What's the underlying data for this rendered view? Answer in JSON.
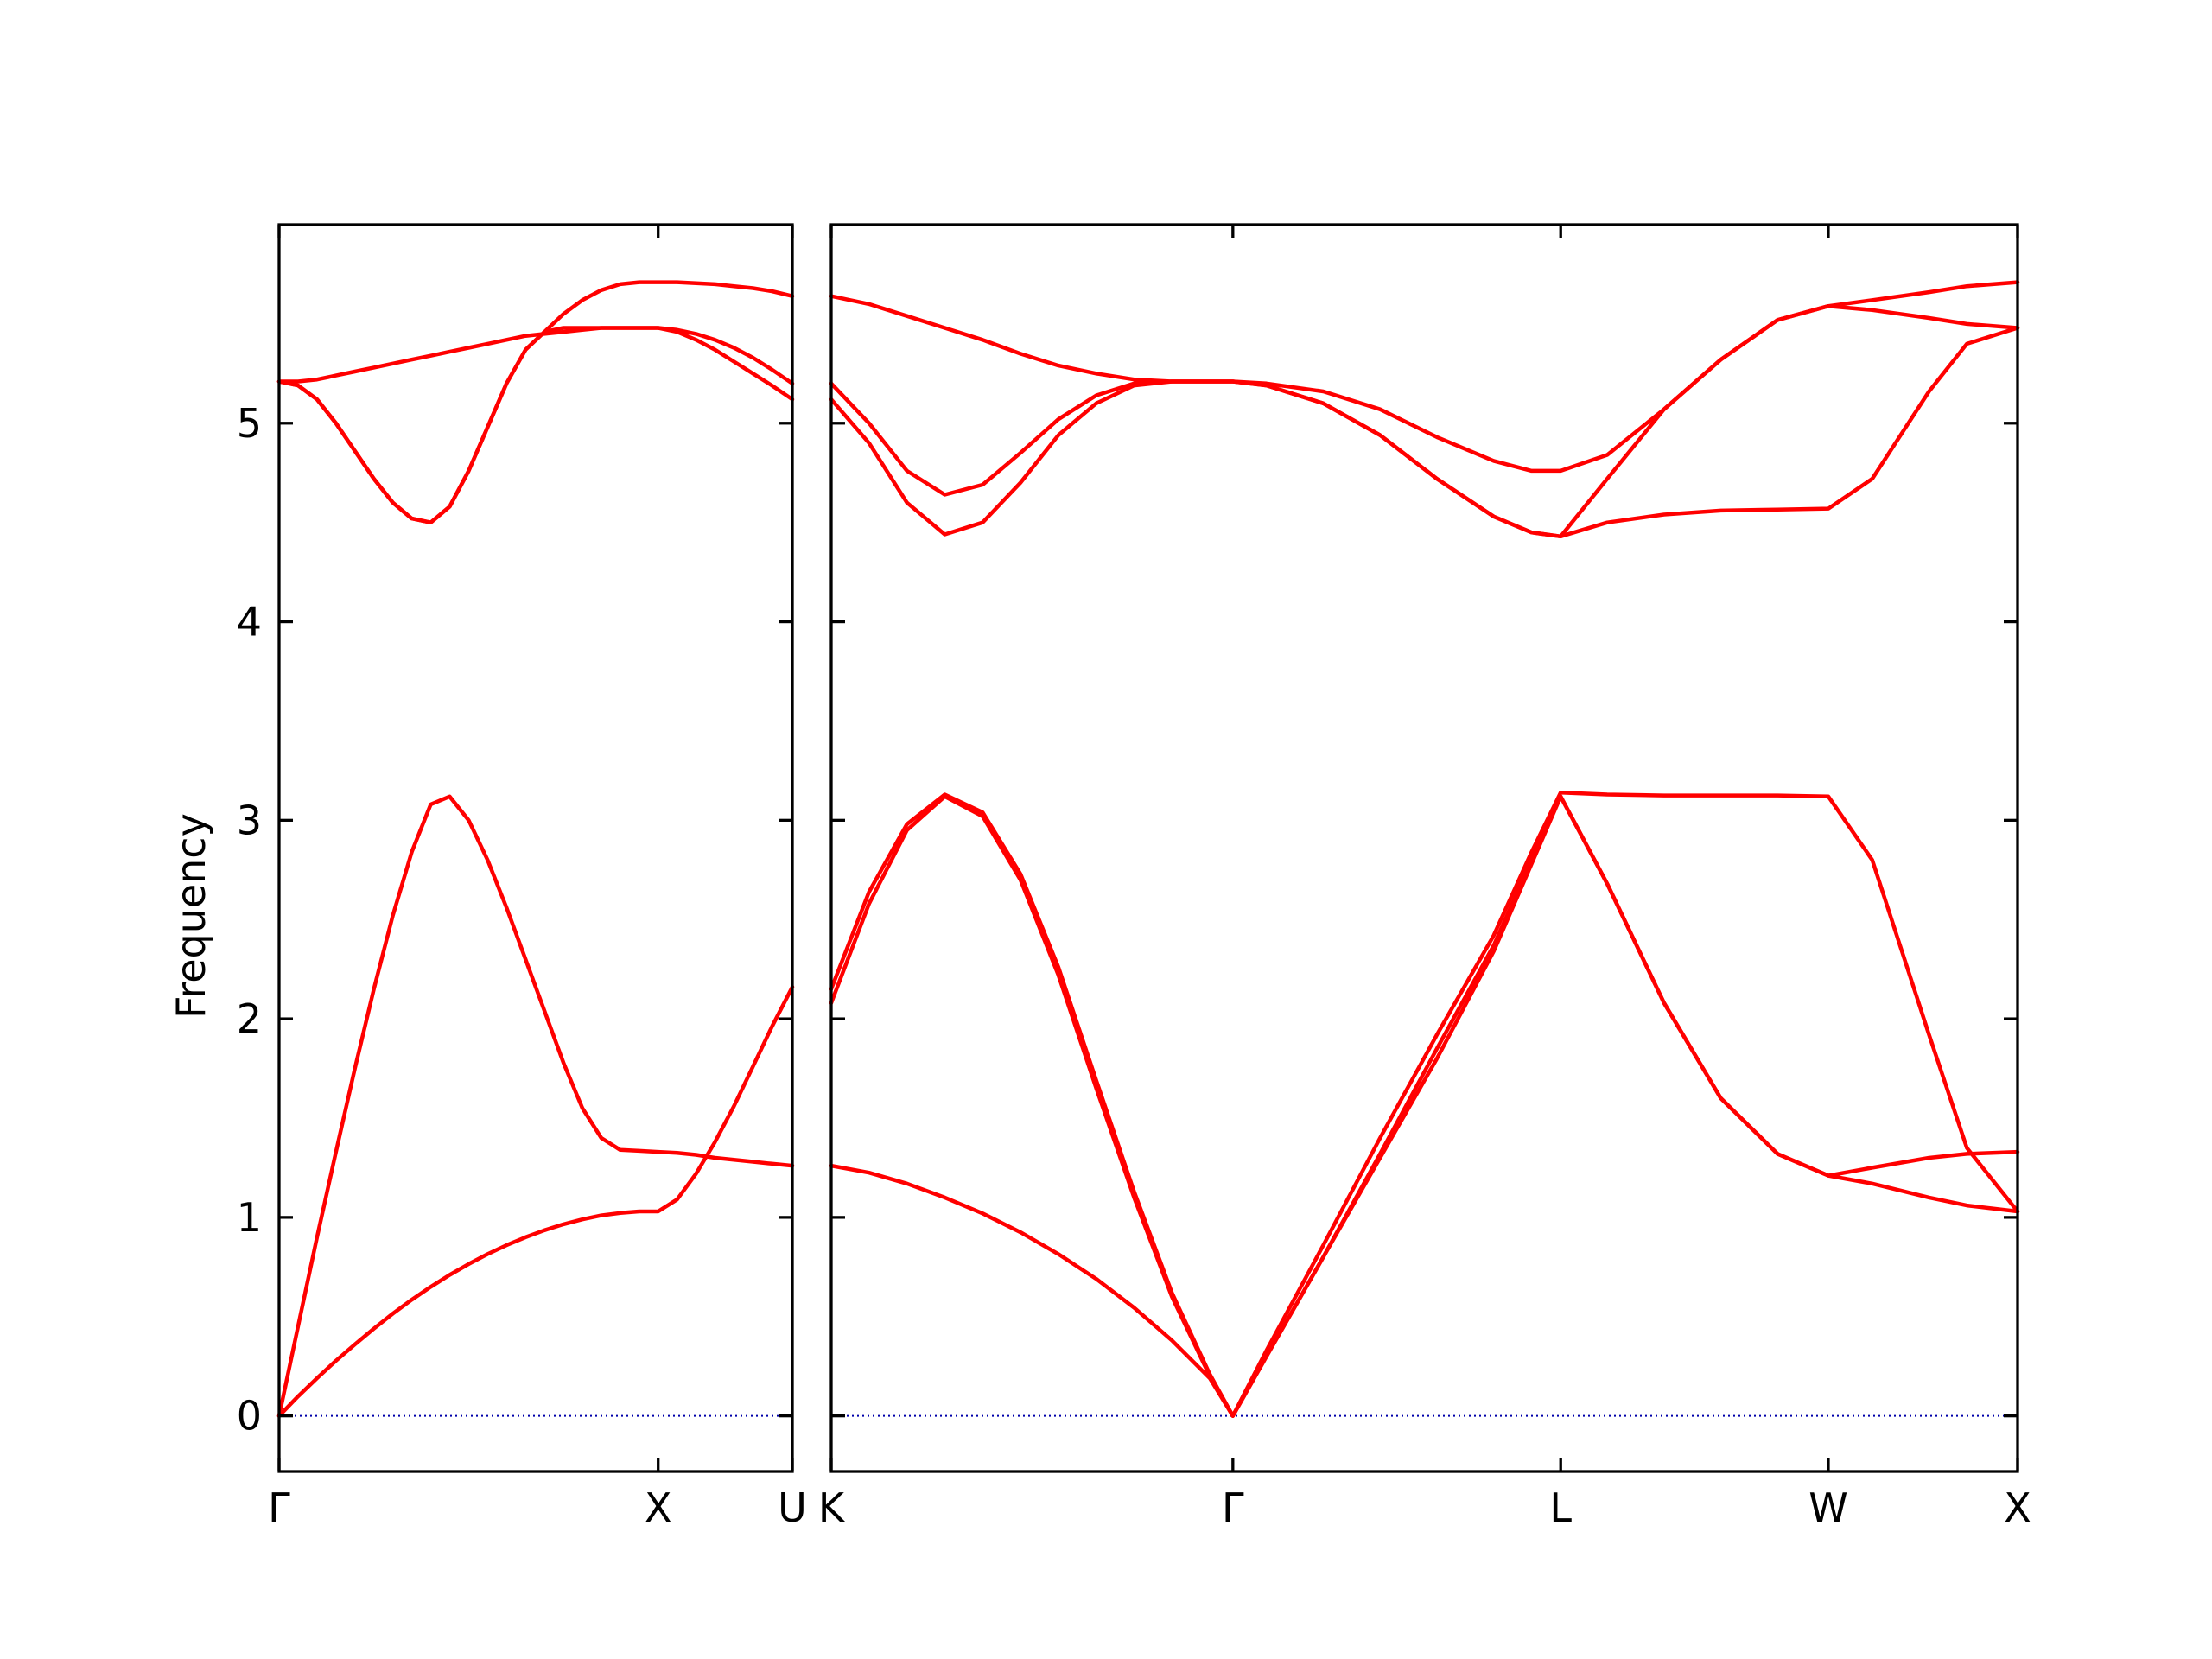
{
  "chart_data": {
    "type": "line",
    "ylabel": "Frequency",
    "ylim": [
      -0.28,
      6.0
    ],
    "yticks": [
      0,
      1,
      2,
      3,
      4,
      5
    ],
    "grid": false,
    "legend": "none",
    "colors": {
      "bands": "#ff0000",
      "zero_line": "#0000aa",
      "axes": "#000000"
    },
    "panels": [
      {
        "xlabels": [
          "Γ",
          "X",
          "U"
        ],
        "x": [
          0,
          1,
          1.354
        ],
        "series": [
          {
            "x": [
              0,
              0.05,
              0.1,
              0.15,
              0.2,
              0.25,
              0.3,
              0.35,
              0.4,
              0.45,
              0.5,
              0.55,
              0.6,
              0.65,
              0.7,
              0.75,
              0.8,
              0.85,
              0.9,
              0.95,
              1,
              1.05,
              1.1,
              1.15,
              1.2,
              1.25,
              1.3,
              1.354
            ],
            "y": [
              0,
              0.098,
              0.19,
              0.278,
              0.36,
              0.44,
              0.515,
              0.585,
              0.65,
              0.71,
              0.765,
              0.815,
              0.86,
              0.9,
              0.935,
              0.965,
              0.99,
              1.01,
              1.022,
              1.03,
              1.03,
              1.09,
              1.22,
              1.38,
              1.56,
              1.76,
              1.96,
              2.16
            ]
          },
          {
            "x": [
              0,
              0.05,
              0.1,
              0.15,
              0.2,
              0.25,
              0.3,
              0.35,
              0.4,
              0.45,
              0.5,
              0.55,
              0.6,
              0.65,
              0.7,
              0.75,
              0.8,
              0.85,
              0.9,
              0.95,
              1,
              1.05,
              1.1,
              1.15,
              1.2,
              1.25,
              1.3,
              1.354
            ],
            "y": [
              0,
              0.45,
              0.9,
              1.33,
              1.75,
              2.15,
              2.52,
              2.84,
              3.08,
              3.12,
              3.0,
              2.8,
              2.56,
              2.3,
              2.04,
              1.78,
              1.55,
              1.4,
              1.34,
              1.335,
              1.33,
              1.325,
              1.315,
              1.3,
              1.29,
              1.28,
              1.27,
              1.26
            ]
          },
          {
            "x": [
              0,
              0.05,
              0.1,
              0.15,
              0.2,
              0.25,
              0.3,
              0.35,
              0.4,
              0.45,
              0.5,
              0.55,
              0.6,
              0.65,
              0.7,
              0.75,
              0.8,
              0.85,
              0.9,
              0.95,
              1,
              1.05,
              1.1,
              1.15,
              1.2,
              1.25,
              1.3,
              1.354
            ],
            "y": [
              5.21,
              5.21,
              5.22,
              5.24,
              5.26,
              5.28,
              5.3,
              5.32,
              5.34,
              5.36,
              5.38,
              5.4,
              5.42,
              5.44,
              5.45,
              5.46,
              5.47,
              5.48,
              5.48,
              5.48,
              5.48,
              5.47,
              5.45,
              5.42,
              5.38,
              5.33,
              5.27,
              5.2
            ]
          },
          {
            "x": [
              0,
              0.05,
              0.1,
              0.15,
              0.2,
              0.25,
              0.3,
              0.35,
              0.4,
              0.45,
              0.5,
              0.55,
              0.6,
              0.65,
              0.7,
              0.75,
              0.8,
              0.85,
              0.9,
              0.95,
              1,
              1.05,
              1.1,
              1.15,
              1.2,
              1.25,
              1.3,
              1.354
            ],
            "y": [
              5.21,
              5.19,
              5.12,
              5.0,
              4.86,
              4.72,
              4.6,
              4.52,
              4.5,
              4.58,
              4.76,
              4.98,
              5.2,
              5.37,
              5.46,
              5.48,
              5.48,
              5.48,
              5.48,
              5.48,
              5.48,
              5.46,
              5.42,
              5.37,
              5.31,
              5.25,
              5.19,
              5.12
            ]
          },
          {
            "x": [
              0,
              0.05,
              0.1,
              0.15,
              0.2,
              0.25,
              0.3,
              0.35,
              0.4,
              0.45,
              0.5,
              0.55,
              0.6,
              0.65,
              0.7,
              0.75,
              0.8,
              0.85,
              0.9,
              0.95,
              1,
              1.05,
              1.1,
              1.15,
              1.2,
              1.25,
              1.3,
              1.354
            ],
            "y": [
              5.21,
              5.19,
              5.12,
              5.0,
              4.86,
              4.72,
              4.6,
              4.52,
              4.5,
              4.58,
              4.76,
              4.98,
              5.2,
              5.37,
              5.46,
              5.55,
              5.62,
              5.67,
              5.7,
              5.71,
              5.71,
              5.71,
              5.705,
              5.7,
              5.69,
              5.68,
              5.665,
              5.64
            ]
          }
        ]
      },
      {
        "xlabels": [
          "K",
          "Γ",
          "L",
          "W",
          "X"
        ],
        "x": [
          0,
          1.061,
          1.927,
          2.634,
          3.134
        ],
        "series": [
          {
            "x": [
              0,
              0.1,
              0.2,
              0.3,
              0.4,
              0.5,
              0.6,
              0.7,
              0.8,
              0.9,
              1.0,
              1.061,
              1.15,
              1.3,
              1.45,
              1.6,
              1.75,
              1.85,
              1.927,
              2.05,
              2.2,
              2.35,
              2.5,
              2.634,
              2.75,
              2.9,
              3.0,
              3.134
            ],
            "y": [
              1.26,
              1.225,
              1.17,
              1.1,
              1.02,
              0.925,
              0.815,
              0.69,
              0.545,
              0.38,
              0.19,
              0,
              0.3,
              0.8,
              1.3,
              1.8,
              2.34,
              2.78,
              3.12,
              2.68,
              2.08,
              1.6,
              1.32,
              1.21,
              1.17,
              1.1,
              1.06,
              1.03
            ]
          },
          {
            "x": [
              0,
              0.1,
              0.2,
              0.3,
              0.4,
              0.5,
              0.6,
              0.7,
              0.8,
              0.9,
              1.0,
              1.061,
              1.15,
              1.3,
              1.45,
              1.6,
              1.75,
              1.85,
              1.927,
              2.05,
              2.2,
              2.35,
              2.5,
              2.634,
              2.75,
              2.9,
              3.0,
              3.134
            ],
            "y": [
              2.08,
              2.58,
              2.95,
              3.12,
              3.02,
              2.7,
              2.22,
              1.65,
              1.1,
              0.6,
              0.2,
              0,
              0.33,
              0.86,
              1.4,
              1.92,
              2.42,
              2.84,
              3.14,
              3.13,
              3.125,
              3.125,
              3.125,
              3.12,
              2.8,
              1.92,
              1.35,
              1.03
            ]
          },
          {
            "x": [
              0,
              0.1,
              0.2,
              0.3,
              0.4,
              0.5,
              0.6,
              0.7,
              0.8,
              0.9,
              1.0,
              1.061,
              1.15,
              1.3,
              1.45,
              1.6,
              1.75,
              1.85,
              1.927,
              2.05,
              2.2,
              2.35,
              2.5,
              2.634,
              2.75,
              2.9,
              3.0,
              3.134
            ],
            "y": [
              2.15,
              2.64,
              2.98,
              3.13,
              3.04,
              2.73,
              2.26,
              1.69,
              1.13,
              0.62,
              0.21,
              0,
              0.3,
              0.8,
              1.32,
              1.85,
              2.37,
              2.8,
              3.12,
              2.68,
              2.08,
              1.6,
              1.32,
              1.21,
              1.25,
              1.3,
              1.32,
              1.33
            ]
          },
          {
            "x": [
              0,
              0.1,
              0.2,
              0.3,
              0.4,
              0.5,
              0.6,
              0.7,
              0.8,
              0.9,
              1.0,
              1.061,
              1.15,
              1.3,
              1.45,
              1.6,
              1.75,
              1.85,
              1.927,
              2.05,
              2.2,
              2.35,
              2.5,
              2.634,
              2.75,
              2.9,
              3.0,
              3.134
            ],
            "y": [
              5.2,
              5.0,
              4.76,
              4.64,
              4.69,
              4.85,
              5.02,
              5.14,
              5.2,
              5.21,
              5.21,
              5.21,
              5.2,
              5.16,
              5.07,
              4.93,
              4.81,
              4.76,
              4.76,
              4.84,
              5.07,
              5.32,
              5.52,
              5.59,
              5.62,
              5.66,
              5.69,
              5.71
            ]
          },
          {
            "x": [
              0,
              0.1,
              0.2,
              0.3,
              0.4,
              0.5,
              0.6,
              0.7,
              0.8,
              0.9,
              1.0,
              1.061,
              1.15,
              1.3,
              1.45,
              1.6,
              1.75,
              1.85,
              1.927,
              2.05,
              2.2,
              2.35,
              2.5,
              2.634,
              2.75,
              2.9,
              3.0,
              3.134
            ],
            "y": [
              5.12,
              4.9,
              4.6,
              4.44,
              4.5,
              4.7,
              4.94,
              5.1,
              5.19,
              5.21,
              5.21,
              5.21,
              5.19,
              5.1,
              4.94,
              4.72,
              4.53,
              4.45,
              4.43,
              4.72,
              5.07,
              5.32,
              5.52,
              5.59,
              5.57,
              5.53,
              5.5,
              5.48
            ]
          },
          {
            "x": [
              0,
              0.1,
              0.2,
              0.3,
              0.4,
              0.5,
              0.6,
              0.7,
              0.8,
              0.9,
              1.0,
              1.061,
              1.15,
              1.3,
              1.45,
              1.6,
              1.75,
              1.85,
              1.927,
              2.05,
              2.2,
              2.35,
              2.5,
              2.634,
              2.75,
              2.9,
              3.0,
              3.134
            ],
            "y": [
              5.64,
              5.6,
              5.54,
              5.48,
              5.42,
              5.35,
              5.29,
              5.25,
              5.22,
              5.21,
              5.21,
              5.21,
              5.19,
              5.1,
              4.94,
              4.72,
              4.53,
              4.45,
              4.43,
              4.5,
              4.54,
              4.56,
              4.565,
              4.57,
              4.72,
              5.16,
              5.4,
              5.48
            ]
          }
        ]
      }
    ]
  }
}
